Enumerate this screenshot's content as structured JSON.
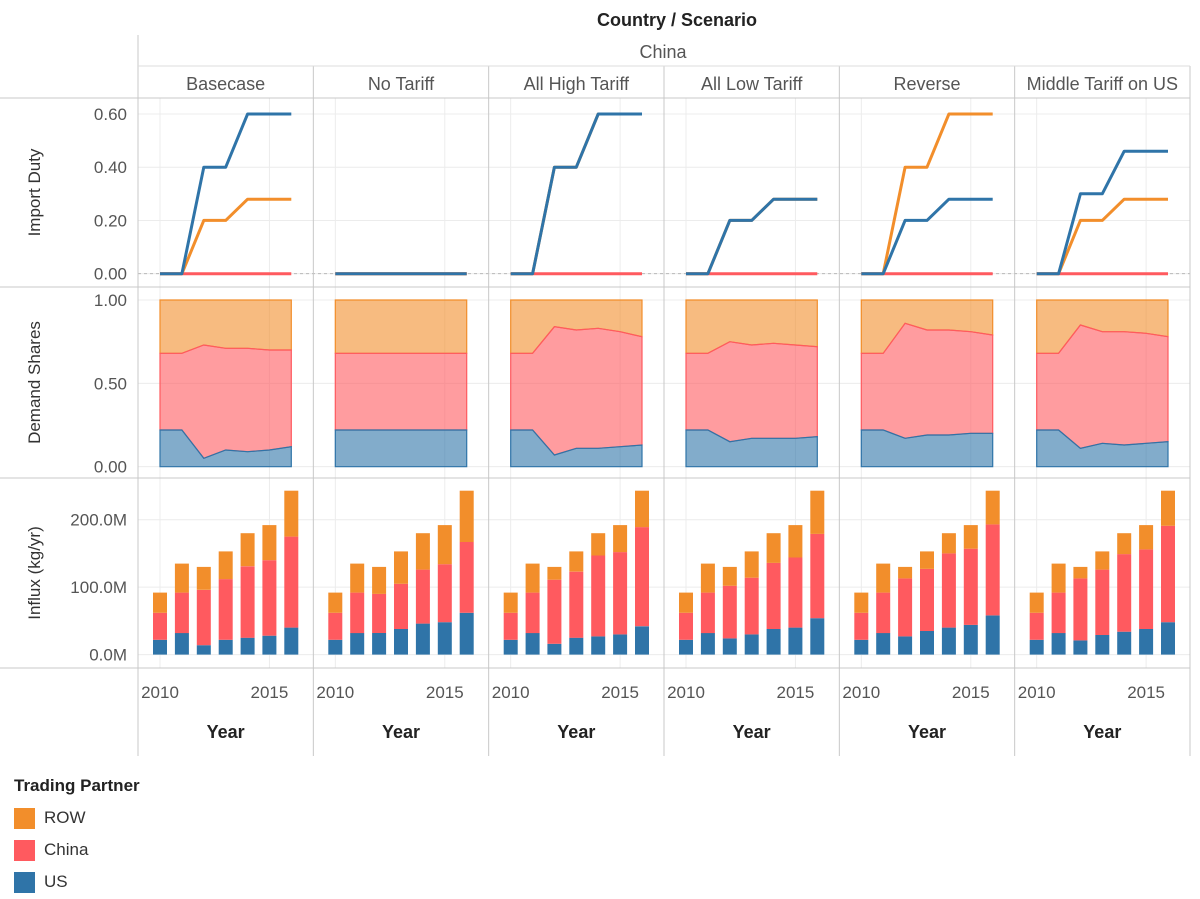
{
  "chart_data": {
    "type": "small-multiples",
    "title": "Country / Scenario",
    "country": "China",
    "x_label": "Year",
    "x_ticks": [
      "2010",
      "2015"
    ],
    "years": [
      2010,
      2011,
      2012,
      2013,
      2014,
      2015,
      2016
    ],
    "scenarios": [
      "Basecase",
      "No Tariff",
      "All High Tariff",
      "All Low Tariff",
      "Reverse",
      "Middle Tariff on US"
    ],
    "colors": {
      "ROW": "#f28e2b",
      "China": "#ff5a5f",
      "US": "#2f74a8"
    },
    "legend": {
      "title": "Trading Partner",
      "items": [
        "ROW",
        "China",
        "US"
      ]
    },
    "rows": [
      {
        "type": "line",
        "ylabel": "Import Duty",
        "ylim": [
          -0.02,
          0.63
        ],
        "yticks": [
          0.0,
          0.2,
          0.4,
          0.6
        ],
        "ytick_labels": [
          "0.00",
          "0.20",
          "0.40",
          "0.60"
        ],
        "data": [
          {
            "US": [
              0,
              0,
              0.4,
              0.4,
              0.6,
              0.6,
              0.6
            ],
            "ROW": [
              0,
              0,
              0.2,
              0.2,
              0.28,
              0.28,
              0.28
            ],
            "China": [
              0,
              0,
              0,
              0,
              0,
              0,
              0
            ]
          },
          {
            "US": [
              0,
              0,
              0,
              0,
              0,
              0,
              0
            ],
            "ROW": [
              0,
              0,
              0,
              0,
              0,
              0,
              0
            ],
            "China": [
              0,
              0,
              0,
              0,
              0,
              0,
              0
            ]
          },
          {
            "US": [
              0,
              0,
              0.4,
              0.4,
              0.6,
              0.6,
              0.6
            ],
            "ROW": [
              0,
              0,
              0.4,
              0.4,
              0.6,
              0.6,
              0.6
            ],
            "China": [
              0,
              0,
              0,
              0,
              0,
              0,
              0
            ]
          },
          {
            "US": [
              0,
              0,
              0.2,
              0.2,
              0.28,
              0.28,
              0.28
            ],
            "ROW": [
              0,
              0,
              0.2,
              0.2,
              0.28,
              0.28,
              0.28
            ],
            "China": [
              0,
              0,
              0,
              0,
              0,
              0,
              0
            ]
          },
          {
            "US": [
              0,
              0,
              0.2,
              0.2,
              0.28,
              0.28,
              0.28
            ],
            "ROW": [
              0,
              0,
              0.4,
              0.4,
              0.6,
              0.6,
              0.6
            ],
            "China": [
              0,
              0,
              0,
              0,
              0,
              0,
              0
            ]
          },
          {
            "US": [
              0,
              0,
              0.3,
              0.3,
              0.46,
              0.46,
              0.46
            ],
            "ROW": [
              0,
              0,
              0.2,
              0.2,
              0.28,
              0.28,
              0.28
            ],
            "China": [
              0,
              0,
              0,
              0,
              0,
              0,
              0
            ]
          }
        ]
      },
      {
        "type": "stacked-area",
        "ylabel": "Demand Shares",
        "ylim": [
          -0.02,
          1.03
        ],
        "yticks": [
          0.0,
          0.5,
          1.0
        ],
        "ytick_labels": [
          "0.00",
          "0.50",
          "1.00"
        ],
        "data": [
          {
            "US": [
              0.22,
              0.22,
              0.05,
              0.1,
              0.09,
              0.1,
              0.12
            ],
            "China": [
              0.46,
              0.46,
              0.68,
              0.61,
              0.62,
              0.6,
              0.58
            ]
          },
          {
            "US": [
              0.22,
              0.22,
              0.22,
              0.22,
              0.22,
              0.22,
              0.22
            ],
            "China": [
              0.46,
              0.46,
              0.46,
              0.46,
              0.46,
              0.46,
              0.46
            ]
          },
          {
            "US": [
              0.22,
              0.22,
              0.07,
              0.11,
              0.11,
              0.12,
              0.13
            ],
            "China": [
              0.46,
              0.46,
              0.77,
              0.71,
              0.72,
              0.69,
              0.65
            ]
          },
          {
            "US": [
              0.22,
              0.22,
              0.15,
              0.17,
              0.17,
              0.17,
              0.18
            ],
            "China": [
              0.46,
              0.46,
              0.6,
              0.56,
              0.57,
              0.56,
              0.54
            ]
          },
          {
            "US": [
              0.22,
              0.22,
              0.17,
              0.19,
              0.19,
              0.2,
              0.2
            ],
            "China": [
              0.46,
              0.46,
              0.69,
              0.63,
              0.63,
              0.61,
              0.59
            ]
          },
          {
            "US": [
              0.22,
              0.22,
              0.11,
              0.14,
              0.13,
              0.14,
              0.15
            ],
            "China": [
              0.46,
              0.46,
              0.74,
              0.67,
              0.68,
              0.66,
              0.63
            ]
          }
        ]
      },
      {
        "type": "stacked-bar",
        "ylabel": "Influx (kg/yr)",
        "ylim": [
          -8,
          250
        ],
        "yticks": [
          0,
          100,
          200
        ],
        "ytick_labels": [
          "0.0M",
          "100.0M",
          "200.0M"
        ],
        "totals": [
          92,
          135,
          130,
          153,
          180,
          192,
          243
        ],
        "data": [
          {
            "US": [
              22,
              32,
              14,
              22,
              25,
              28,
              40
            ],
            "China": [
              40,
              60,
              82,
              90,
              106,
              112,
              135
            ]
          },
          {
            "US": [
              22,
              32,
              32,
              38,
              46,
              48,
              62
            ],
            "China": [
              40,
              60,
              58,
              67,
              80,
              86,
              105
            ]
          },
          {
            "US": [
              22,
              32,
              16,
              25,
              27,
              30,
              42
            ],
            "China": [
              40,
              60,
              95,
              98,
              120,
              122,
              147
            ]
          },
          {
            "US": [
              22,
              32,
              24,
              30,
              38,
              40,
              54
            ],
            "China": [
              40,
              60,
              78,
              84,
              98,
              104,
              125
            ]
          },
          {
            "US": [
              22,
              32,
              27,
              35,
              40,
              44,
              58
            ],
            "China": [
              40,
              60,
              86,
              92,
              110,
              113,
              135
            ]
          },
          {
            "US": [
              22,
              32,
              21,
              29,
              34,
              38,
              48
            ],
            "China": [
              40,
              60,
              92,
              97,
              115,
              118,
              143
            ]
          }
        ]
      }
    ]
  }
}
